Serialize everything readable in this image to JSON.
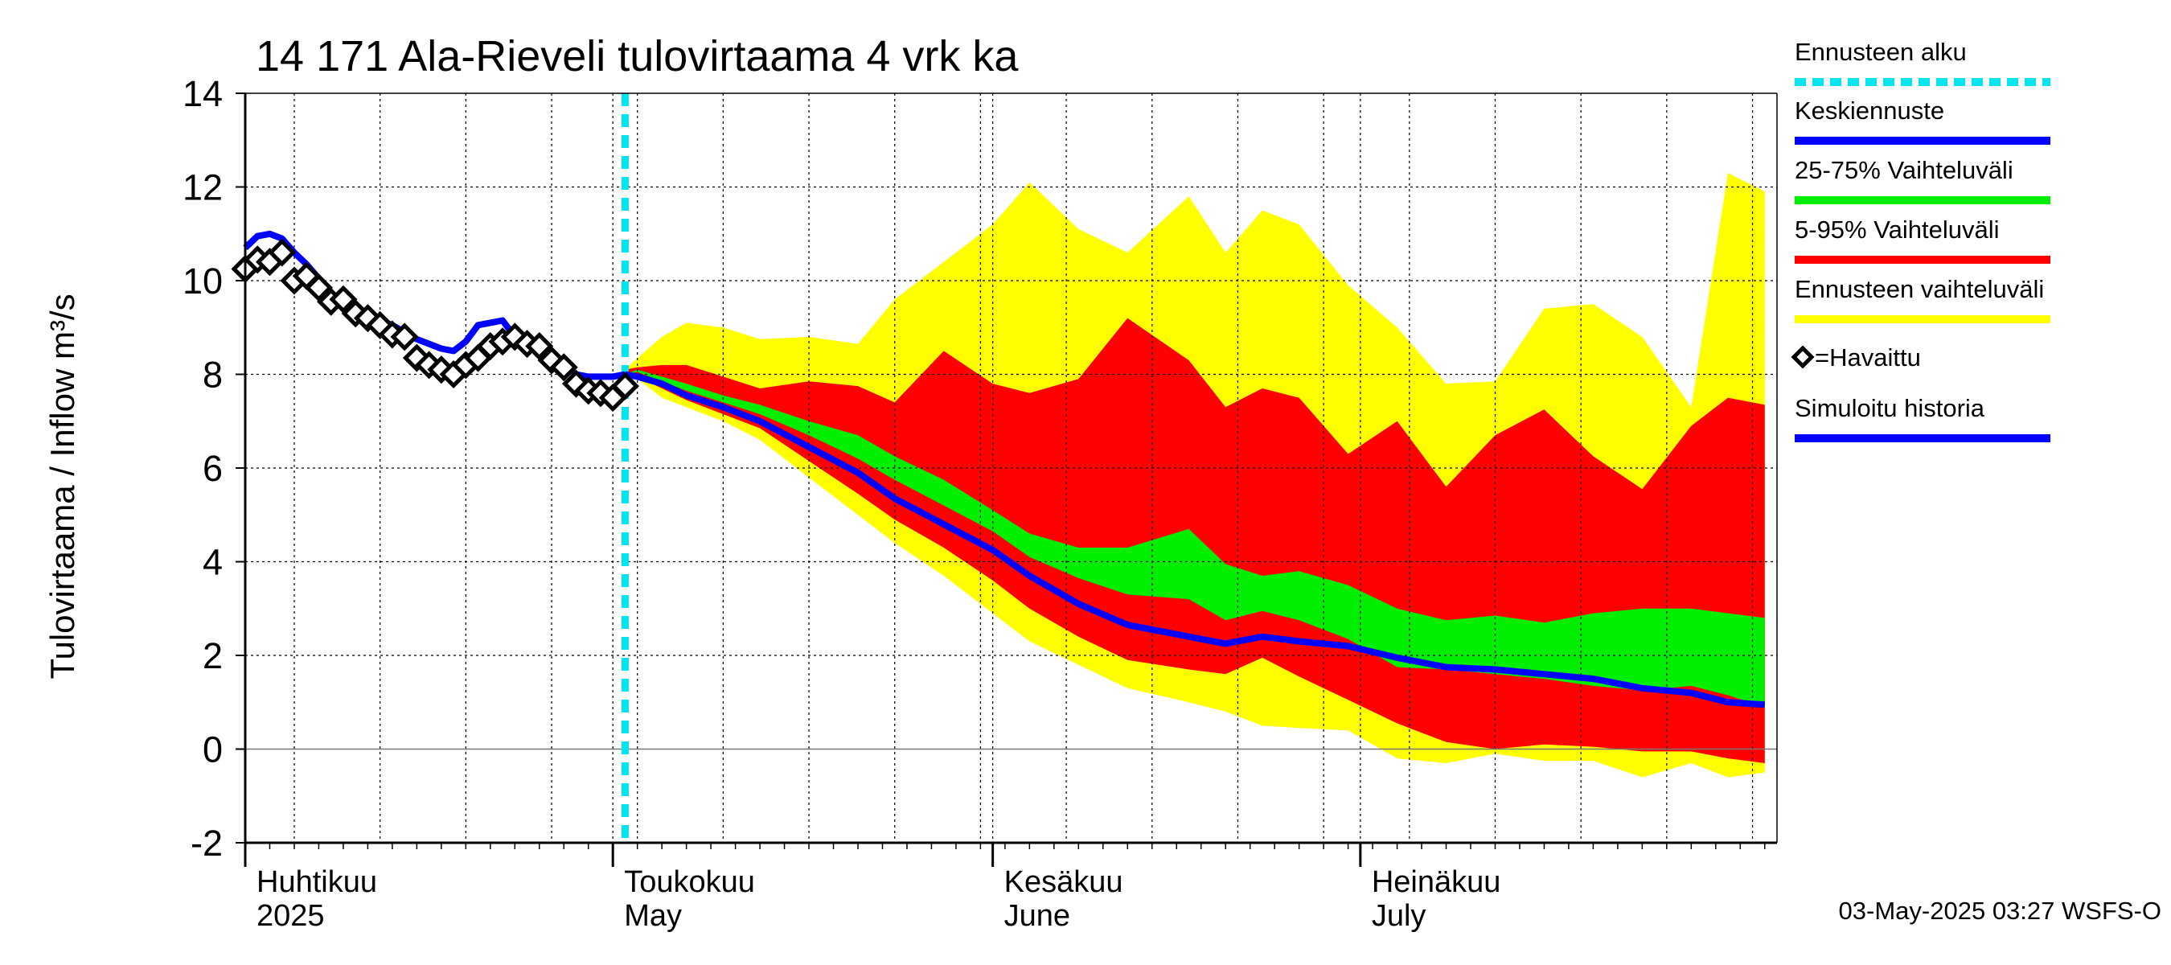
{
  "chart_data": {
    "type": "area",
    "title": "14 171 Ala-Rieveli tulovirtaama 4 vrk ka",
    "ylabel": "Tulovirtaama / Inflow   m³/s",
    "ylim": [
      -2,
      14
    ],
    "yticks": [
      -2,
      0,
      2,
      4,
      6,
      8,
      10,
      12,
      14
    ],
    "xlim": [
      "2025-04-01",
      "2025-08-04"
    ],
    "grid": true,
    "months": [
      {
        "date": "2025-04-01",
        "fi": "Huhtikuu",
        "en": "2025"
      },
      {
        "date": "2025-05-01",
        "fi": "Toukokuu",
        "en": "May"
      },
      {
        "date": "2025-06-01",
        "fi": "Kesäkuu",
        "en": "June"
      },
      {
        "date": "2025-07-01",
        "fi": "Heinäkuu",
        "en": "July"
      }
    ],
    "forecast_start": "2025-05-02",
    "legend": [
      {
        "label": "Ennusteen alku",
        "color": "#00e5ee",
        "style": "dashed"
      },
      {
        "label": "Keskiennuste",
        "color": "#0000ff",
        "style": "solid"
      },
      {
        "label": "25-75% Vaihteluväli",
        "color": "#00ee00",
        "style": "solid"
      },
      {
        "label": "5-95% Vaihteluväli",
        "color": "#ff0000",
        "style": "solid"
      },
      {
        "label": "Ennusteen vaihteluväli",
        "color": "#ffff00",
        "style": "solid"
      },
      {
        "label": "=Havaittu",
        "color": "#000000",
        "style": "marker"
      },
      {
        "label": "Simuloitu historia",
        "color": "#0000ff",
        "style": "solid"
      }
    ],
    "footer": "03-May-2025 03:27 WSFS-O",
    "observed": [
      [
        "2025-04-01",
        10.25
      ],
      [
        "2025-04-02",
        10.45
      ],
      [
        "2025-04-03",
        10.4
      ],
      [
        "2025-04-04",
        10.6
      ],
      [
        "2025-04-05",
        10.0
      ],
      [
        "2025-04-06",
        10.1
      ],
      [
        "2025-04-07",
        9.85
      ],
      [
        "2025-04-08",
        9.55
      ],
      [
        "2025-04-09",
        9.6
      ],
      [
        "2025-04-10",
        9.3
      ],
      [
        "2025-04-11",
        9.2
      ],
      [
        "2025-04-12",
        9.05
      ],
      [
        "2025-04-13",
        8.85
      ],
      [
        "2025-04-14",
        8.8
      ],
      [
        "2025-04-15",
        8.35
      ],
      [
        "2025-04-16",
        8.2
      ],
      [
        "2025-04-17",
        8.1
      ],
      [
        "2025-04-18",
        8.0
      ],
      [
        "2025-04-19",
        8.2
      ],
      [
        "2025-04-20",
        8.35
      ],
      [
        "2025-04-21",
        8.6
      ],
      [
        "2025-04-22",
        8.7
      ],
      [
        "2025-04-23",
        8.8
      ],
      [
        "2025-04-24",
        8.65
      ],
      [
        "2025-04-25",
        8.6
      ],
      [
        "2025-04-26",
        8.3
      ],
      [
        "2025-04-27",
        8.15
      ],
      [
        "2025-04-28",
        7.8
      ],
      [
        "2025-04-29",
        7.65
      ],
      [
        "2025-04-30",
        7.6
      ],
      [
        "2025-05-01",
        7.5
      ],
      [
        "2025-05-02",
        7.75
      ]
    ],
    "simulated_history": [
      [
        "2025-04-01",
        10.7
      ],
      [
        "2025-04-02",
        10.95
      ],
      [
        "2025-04-03",
        11.0
      ],
      [
        "2025-04-04",
        10.9
      ],
      [
        "2025-04-05",
        10.6
      ],
      [
        "2025-04-06",
        10.35
      ],
      [
        "2025-04-07",
        10.05
      ],
      [
        "2025-04-08",
        9.75
      ],
      [
        "2025-04-09",
        9.5
      ],
      [
        "2025-04-10",
        9.35
      ],
      [
        "2025-04-11",
        9.25
      ],
      [
        "2025-04-12",
        9.15
      ],
      [
        "2025-04-13",
        9.05
      ],
      [
        "2025-04-14",
        8.9
      ],
      [
        "2025-04-15",
        8.75
      ],
      [
        "2025-04-16",
        8.65
      ],
      [
        "2025-04-17",
        8.55
      ],
      [
        "2025-04-18",
        8.5
      ],
      [
        "2025-04-19",
        8.7
      ],
      [
        "2025-04-20",
        9.05
      ],
      [
        "2025-04-21",
        9.1
      ],
      [
        "2025-04-22",
        9.15
      ],
      [
        "2025-04-23",
        8.8
      ],
      [
        "2025-04-24",
        8.75
      ],
      [
        "2025-04-25",
        8.6
      ],
      [
        "2025-04-26",
        8.4
      ],
      [
        "2025-04-27",
        8.15
      ],
      [
        "2025-04-28",
        8.0
      ],
      [
        "2025-04-29",
        7.95
      ],
      [
        "2025-04-30",
        7.95
      ],
      [
        "2025-05-01",
        7.95
      ],
      [
        "2025-05-02",
        8.0
      ]
    ],
    "forecast": [
      [
        "2025-05-02",
        8.0,
        8.0,
        8.0,
        8.0,
        8.0,
        8.1,
        8.1
      ],
      [
        "2025-05-03",
        7.9,
        7.95,
        7.95,
        8.05,
        8.1,
        8.15,
        8.35
      ],
      [
        "2025-05-05",
        7.5,
        7.7,
        7.8,
        7.85,
        7.95,
        8.2,
        8.8
      ],
      [
        "2025-05-07",
        7.3,
        7.45,
        7.55,
        7.65,
        7.8,
        8.2,
        9.1
      ],
      [
        "2025-05-10",
        7.0,
        7.15,
        7.3,
        7.4,
        7.55,
        7.95,
        9.0
      ],
      [
        "2025-05-13",
        6.6,
        6.85,
        7.0,
        7.15,
        7.35,
        7.7,
        8.75
      ],
      [
        "2025-05-17",
        5.8,
        6.15,
        6.45,
        6.7,
        7.0,
        7.85,
        8.8
      ],
      [
        "2025-05-21",
        5.0,
        5.45,
        5.9,
        6.2,
        6.7,
        7.75,
        8.65
      ],
      [
        "2025-05-24",
        4.4,
        4.9,
        5.35,
        5.75,
        6.25,
        7.4,
        9.6
      ],
      [
        "2025-05-28",
        3.7,
        4.3,
        4.8,
        5.2,
        5.75,
        8.5,
        10.4
      ],
      [
        "2025-06-01",
        2.9,
        3.6,
        4.25,
        4.65,
        5.1,
        7.8,
        11.2
      ],
      [
        "2025-06-04",
        2.3,
        3.0,
        3.7,
        4.1,
        4.6,
        7.6,
        12.1
      ],
      [
        "2025-06-08",
        1.8,
        2.4,
        3.1,
        3.65,
        4.3,
        7.9,
        11.1
      ],
      [
        "2025-06-12",
        1.3,
        1.9,
        2.65,
        3.3,
        4.3,
        9.2,
        10.6
      ],
      [
        "2025-06-17",
        1.0,
        1.7,
        2.4,
        3.2,
        4.7,
        8.3,
        11.8
      ],
      [
        "2025-06-20",
        0.8,
        1.6,
        2.25,
        2.75,
        3.95,
        7.3,
        10.6
      ],
      [
        "2025-06-23",
        0.5,
        1.95,
        2.4,
        2.95,
        3.7,
        7.7,
        11.5
      ],
      [
        "2025-06-26",
        0.45,
        1.55,
        2.3,
        2.75,
        3.8,
        7.5,
        11.2
      ],
      [
        "2025-06-30",
        0.4,
        1.05,
        2.2,
        2.35,
        3.5,
        6.3,
        9.9
      ],
      [
        "2025-07-04",
        -0.2,
        0.55,
        1.95,
        1.75,
        3.0,
        7.0,
        9.0
      ],
      [
        "2025-07-08",
        -0.3,
        0.15,
        1.75,
        1.7,
        2.75,
        5.6,
        7.8
      ],
      [
        "2025-07-12",
        -0.1,
        0.0,
        1.7,
        1.6,
        2.85,
        6.7,
        7.85
      ],
      [
        "2025-07-16",
        -0.25,
        0.1,
        1.6,
        1.5,
        2.7,
        7.25,
        9.4
      ],
      [
        "2025-07-20",
        -0.25,
        0.05,
        1.5,
        1.35,
        2.9,
        6.25,
        9.5
      ],
      [
        "2025-07-24",
        -0.6,
        -0.05,
        1.3,
        1.25,
        3.0,
        5.55,
        8.8
      ],
      [
        "2025-07-28",
        -0.3,
        -0.05,
        1.2,
        1.35,
        3.0,
        6.9,
        7.3
      ],
      [
        "2025-07-31",
        -0.6,
        -0.2,
        1.0,
        1.15,
        2.9,
        7.5,
        12.3
      ],
      [
        "2025-08-03",
        -0.5,
        -0.3,
        0.95,
        0.9,
        2.8,
        7.35,
        11.9
      ]
    ]
  }
}
